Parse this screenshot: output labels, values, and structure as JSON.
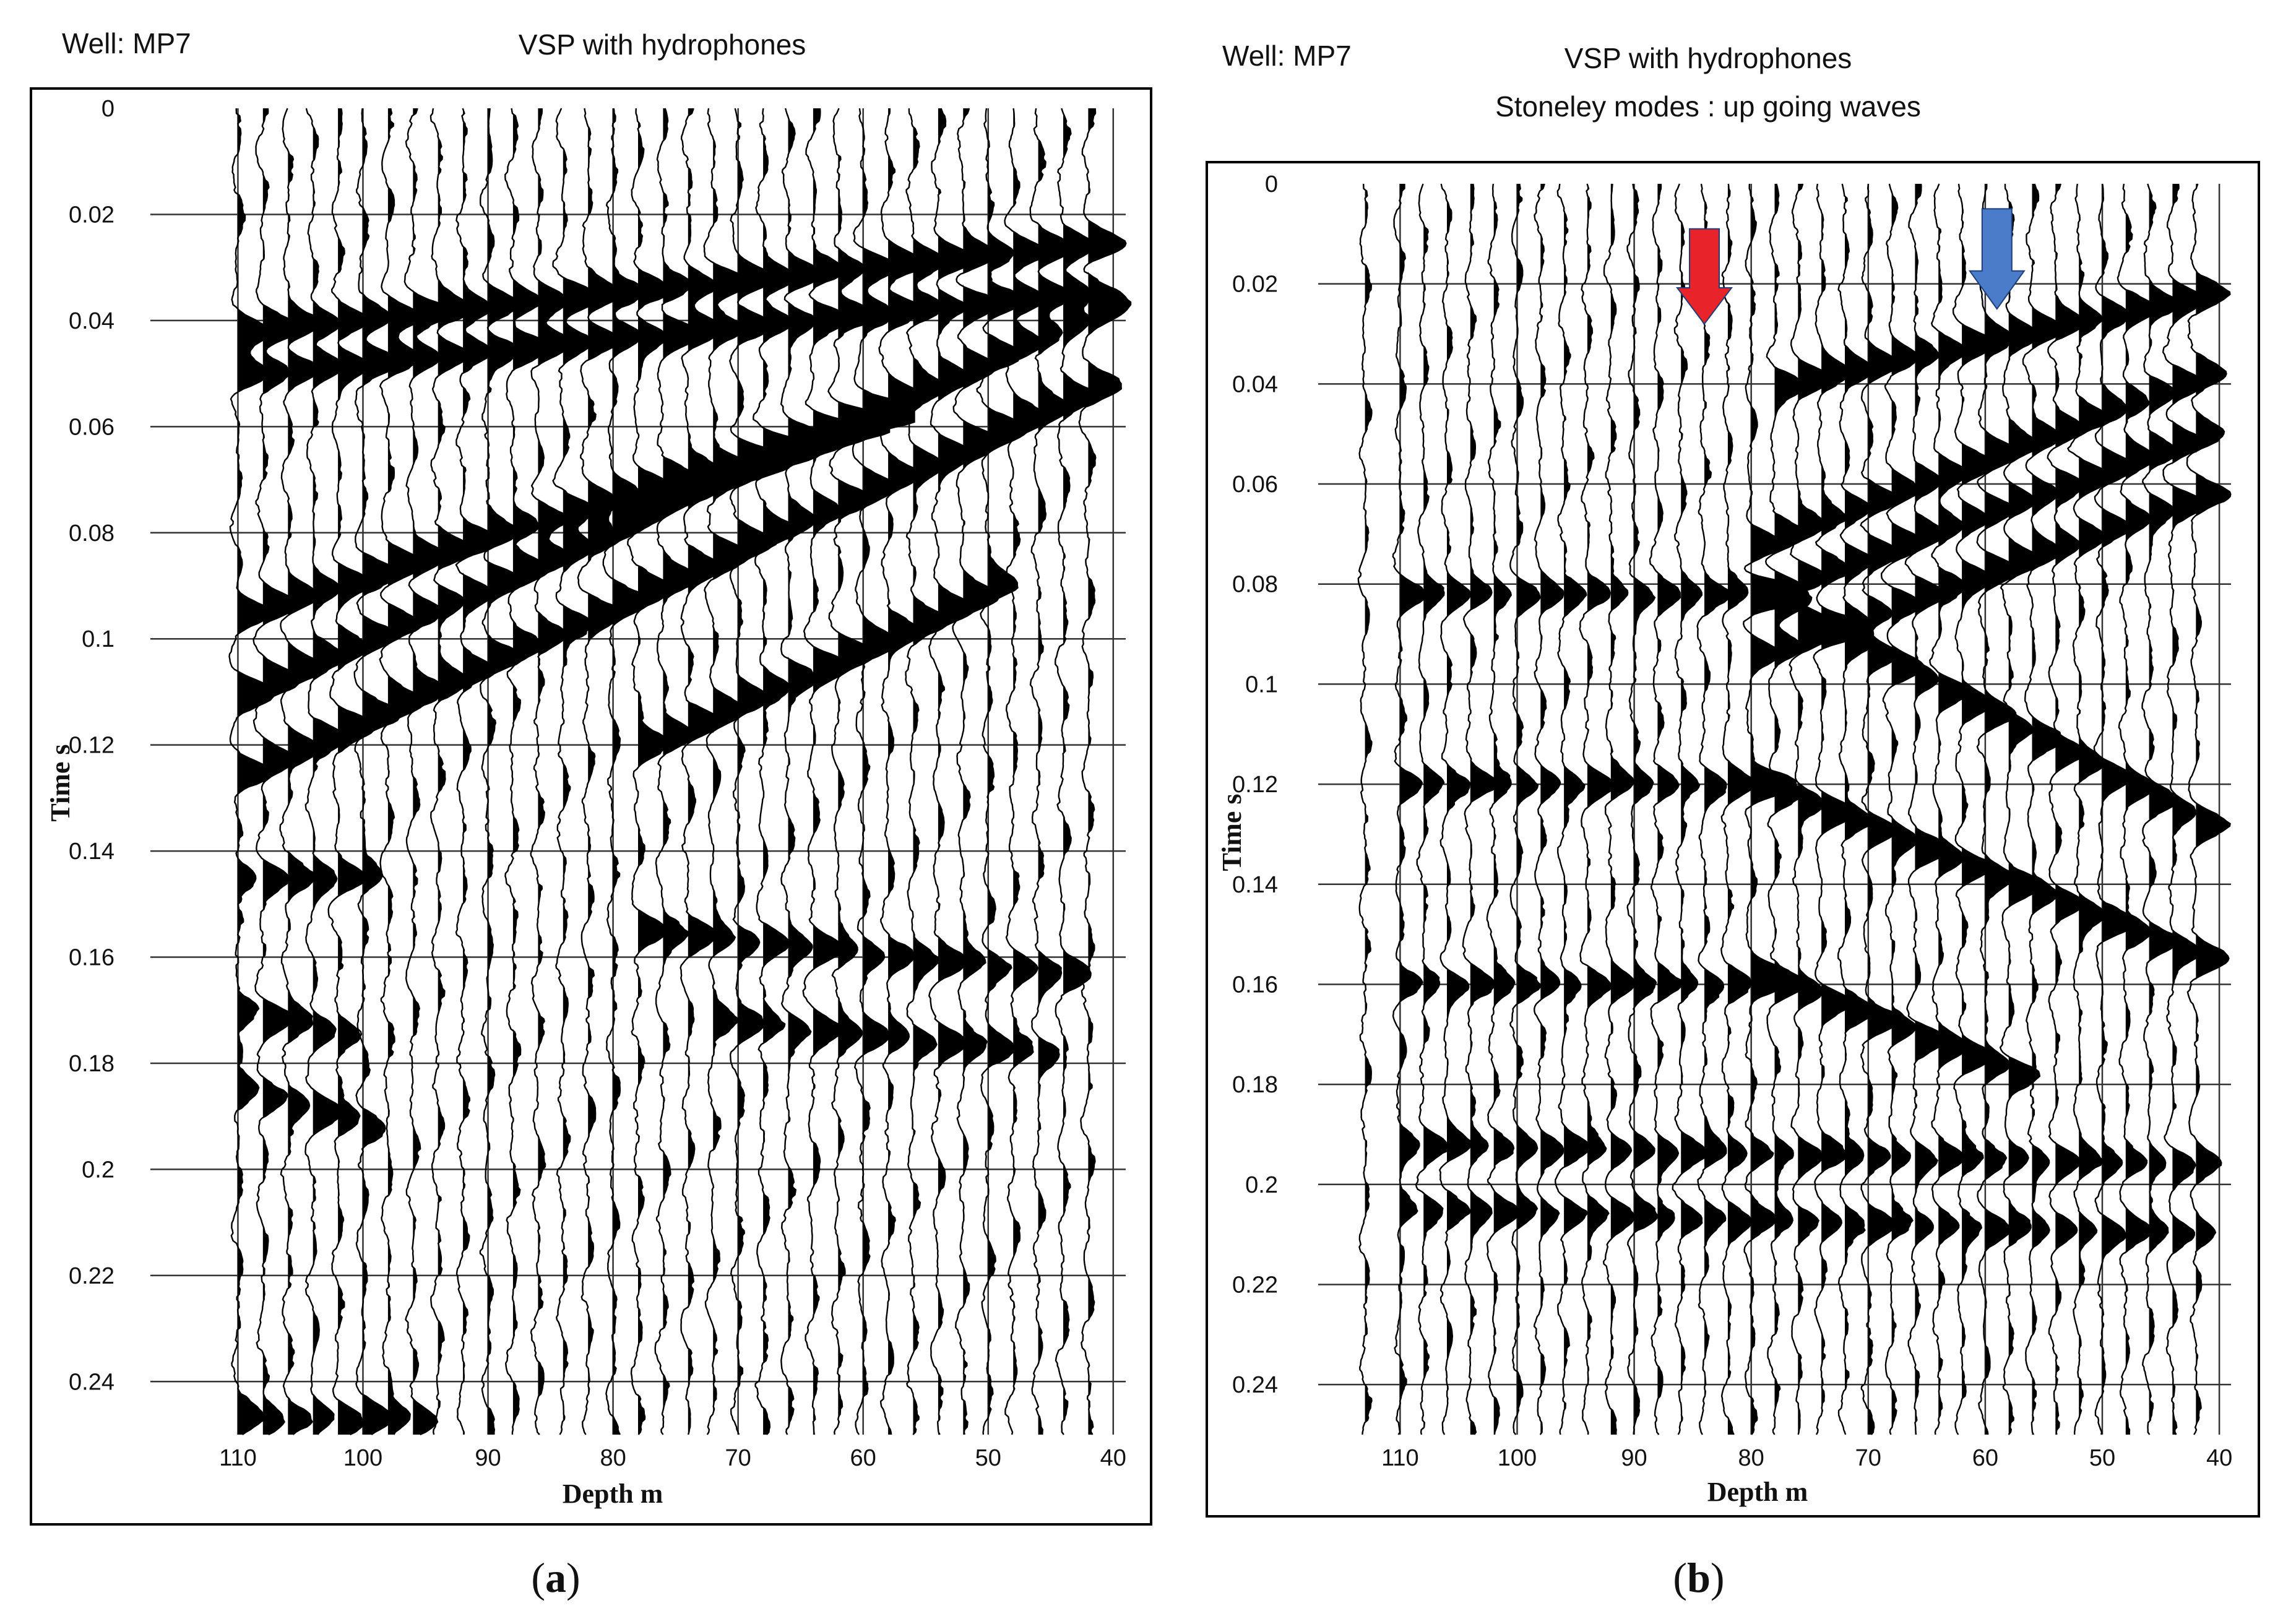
{
  "chart_data": [
    {
      "type": "seismic-wiggle",
      "panel_caption": "a",
      "well_label": "Well: MP7",
      "title": "VSP with hydrophones",
      "subtitle": "",
      "xlabel": "Depth m",
      "ylabel": "Time s",
      "x_ticks": [
        110,
        100,
        90,
        80,
        70,
        60,
        50,
        40
      ],
      "x_range": [
        117,
        39
      ],
      "y_ticks": [
        0,
        0.02,
        0.04,
        0.06,
        0.08,
        0.1,
        0.12,
        0.14,
        0.16,
        0.18,
        0.2,
        0.22,
        0.24
      ],
      "y_range": [
        0,
        0.25
      ],
      "grid": true,
      "trace_depths": [
        110,
        108,
        106,
        104,
        102,
        100,
        98,
        96,
        94,
        92,
        90,
        88,
        86,
        84,
        82,
        80,
        78,
        76,
        74,
        72,
        70,
        68,
        66,
        64,
        62,
        60,
        58,
        56,
        54,
        52,
        50,
        48,
        46,
        44,
        42
      ],
      "events": [
        {
          "kind": "downgoing",
          "depth": [
            110,
            40
          ],
          "time": [
            0.042,
            0.025
          ]
        },
        {
          "kind": "downgoing",
          "depth": [
            110,
            40
          ],
          "time": [
            0.05,
            0.034
          ]
        },
        {
          "kind": "upgoing",
          "depth": [
            40,
            110
          ],
          "time": [
            0.036,
            0.11
          ]
        },
        {
          "kind": "upgoing",
          "depth": [
            40,
            110
          ],
          "time": [
            0.05,
            0.125
          ]
        },
        {
          "kind": "upgoing",
          "depth": [
            60,
            110
          ],
          "time": [
            0.058,
            0.095
          ]
        },
        {
          "kind": "upgoing",
          "depth": [
            50,
            78
          ],
          "time": [
            0.09,
            0.12
          ]
        },
        {
          "kind": "reflection",
          "depth": [
            110,
            100
          ],
          "time": [
            0.145,
            0.145
          ]
        },
        {
          "kind": "reflection",
          "depth": [
            110,
            102
          ],
          "time": [
            0.17,
            0.175
          ]
        },
        {
          "kind": "reflection",
          "depth": [
            110,
            100
          ],
          "time": [
            0.185,
            0.192
          ]
        },
        {
          "kind": "reflection",
          "depth": [
            78,
            45
          ],
          "time": [
            0.155,
            0.163
          ]
        },
        {
          "kind": "reflection",
          "depth": [
            72,
            46
          ],
          "time": [
            0.172,
            0.178
          ]
        },
        {
          "kind": "reflection",
          "depth": [
            110,
            96
          ],
          "time": [
            0.247,
            0.247
          ]
        }
      ]
    },
    {
      "type": "seismic-wiggle",
      "panel_caption": "b",
      "well_label": "Well: MP7",
      "title": "VSP with hydrophones",
      "subtitle": "Stoneley modes : up going waves",
      "xlabel": "Depth m",
      "ylabel": "Time s",
      "x_ticks": [
        110,
        100,
        90,
        80,
        70,
        60,
        50,
        40
      ],
      "x_range": [
        117,
        39
      ],
      "y_ticks": [
        0,
        0.02,
        0.04,
        0.06,
        0.08,
        0.1,
        0.12,
        0.14,
        0.16,
        0.18,
        0.2,
        0.22,
        0.24
      ],
      "y_range": [
        0,
        0.25
      ],
      "grid": true,
      "trace_depths": [
        113,
        110,
        108,
        106,
        104,
        102,
        100,
        98,
        96,
        94,
        92,
        90,
        88,
        86,
        84,
        82,
        80,
        78,
        76,
        74,
        72,
        70,
        68,
        66,
        64,
        62,
        60,
        58,
        56,
        54,
        52,
        50,
        48,
        46,
        44,
        42
      ],
      "events": [
        {
          "kind": "upgoing",
          "depth": [
            42,
            78
          ],
          "time": [
            0.022,
            0.04
          ]
        },
        {
          "kind": "upgoing",
          "depth": [
            42,
            80
          ],
          "time": [
            0.038,
            0.072
          ]
        },
        {
          "kind": "upgoing",
          "depth": [
            42,
            80
          ],
          "time": [
            0.05,
            0.082
          ]
        },
        {
          "kind": "upgoing",
          "depth": [
            42,
            80
          ],
          "time": [
            0.062,
            0.094
          ]
        },
        {
          "kind": "upgoing",
          "depth": [
            42,
            80
          ],
          "time": [
            0.128,
            0.082
          ]
        },
        {
          "kind": "upgoing",
          "depth": [
            42,
            80
          ],
          "time": [
            0.155,
            0.12
          ]
        },
        {
          "kind": "upgoing",
          "depth": [
            58,
            80
          ],
          "time": [
            0.178,
            0.158
          ]
        },
        {
          "kind": "wavelet",
          "depth": [
            110,
            80
          ],
          "time": [
            0.082,
            0.082
          ]
        },
        {
          "kind": "wavelet",
          "depth": [
            110,
            80
          ],
          "time": [
            0.12,
            0.12
          ]
        },
        {
          "kind": "wavelet",
          "depth": [
            110,
            80
          ],
          "time": [
            0.16,
            0.16
          ]
        },
        {
          "kind": "wavelet",
          "depth": [
            110,
            42
          ],
          "time": [
            0.192,
            0.196
          ]
        },
        {
          "kind": "wavelet",
          "depth": [
            110,
            42
          ],
          "time": [
            0.205,
            0.21
          ]
        }
      ],
      "arrows": [
        {
          "name": "red-arrow",
          "depth": 84,
          "time_range": [
            0.009,
            0.028
          ],
          "color": "#e8232a"
        },
        {
          "name": "blue-arrow",
          "depth": 59,
          "time_range": [
            0.005,
            0.025
          ],
          "color": "#4a7cc9"
        }
      ]
    }
  ],
  "colors": {
    "trace": "#000000",
    "fill": "#000000",
    "grid": "#333333",
    "red_arrow": "#e8232a",
    "blue_arrow": "#4a7cc9"
  }
}
